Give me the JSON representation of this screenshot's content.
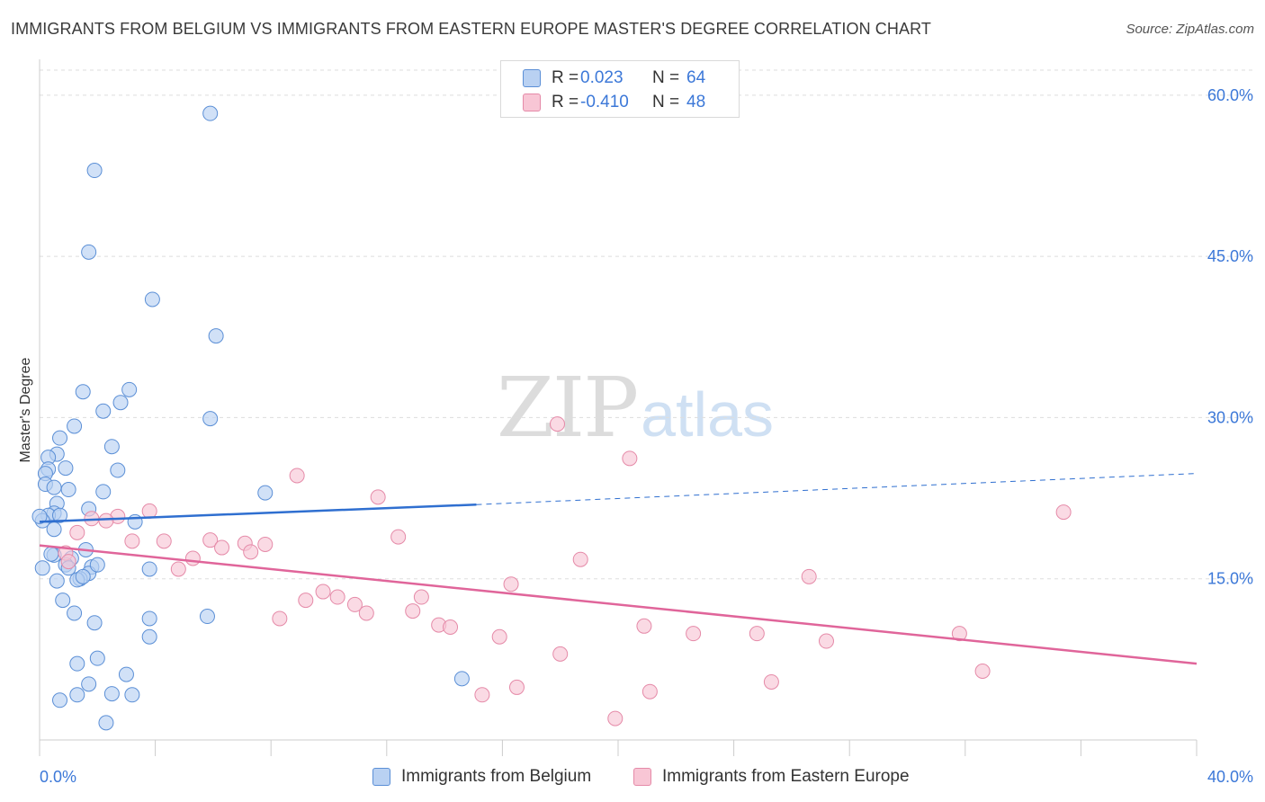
{
  "title": "IMMIGRANTS FROM BELGIUM VS IMMIGRANTS FROM EASTERN EUROPE MASTER'S DEGREE CORRELATION CHART",
  "source": "Source: ZipAtlas.com",
  "watermark": {
    "zip": "ZIP",
    "atlas": "atlas"
  },
  "colors": {
    "belgium_fill": "#b9d1f2",
    "belgium_stroke": "#5b8fd6",
    "belgium_line": "#2f6fd0",
    "eastern_fill": "#f8c6d5",
    "eastern_stroke": "#e58aa8",
    "eastern_line": "#e0659a",
    "accent_text": "#3c78d8",
    "grid": "#dddddd"
  },
  "legend": {
    "rows": [
      {
        "r_label": "R =",
        "r_value": " 0.023",
        "n_label": "N =",
        "n_value": "64"
      },
      {
        "r_label": "R =",
        "r_value": "-0.410",
        "n_label": "N =",
        "n_value": "48"
      }
    ]
  },
  "chart_data": {
    "type": "scatter",
    "title": "IMMIGRANTS FROM BELGIUM VS IMMIGRANTS FROM EASTERN EUROPE MASTER'S DEGREE CORRELATION CHART",
    "xlabel": "",
    "ylabel": "Master's Degree",
    "xlim": [
      0,
      40
    ],
    "ylim": [
      0,
      63
    ],
    "x_tick_labels": [
      "0.0%",
      "40.0%"
    ],
    "y_ticks": [
      15,
      30,
      45,
      60
    ],
    "y_tick_labels": [
      "15.0%",
      "30.0%",
      "45.0%",
      "60.0%"
    ],
    "grid": true,
    "series": [
      {
        "name": "Immigrants from Belgium",
        "points": [
          [
            5.9,
            58.3
          ],
          [
            1.9,
            53.0
          ],
          [
            1.7,
            45.4
          ],
          [
            3.9,
            41.0
          ],
          [
            6.1,
            37.6
          ],
          [
            1.5,
            32.4
          ],
          [
            3.1,
            32.6
          ],
          [
            2.8,
            31.4
          ],
          [
            2.2,
            30.6
          ],
          [
            5.9,
            29.9
          ],
          [
            1.2,
            29.2
          ],
          [
            0.7,
            28.1
          ],
          [
            2.5,
            27.3
          ],
          [
            0.6,
            26.6
          ],
          [
            0.3,
            26.3
          ],
          [
            0.3,
            25.2
          ],
          [
            0.9,
            25.3
          ],
          [
            2.7,
            25.1
          ],
          [
            0.2,
            24.8
          ],
          [
            0.2,
            23.8
          ],
          [
            0.5,
            23.5
          ],
          [
            1.0,
            23.3
          ],
          [
            2.2,
            23.1
          ],
          [
            7.8,
            23.0
          ],
          [
            0.6,
            22.0
          ],
          [
            1.7,
            21.5
          ],
          [
            0.5,
            21.1
          ],
          [
            0.3,
            20.9
          ],
          [
            0.7,
            20.9
          ],
          [
            0.1,
            20.4
          ],
          [
            3.3,
            20.3
          ],
          [
            0.5,
            19.6
          ],
          [
            1.6,
            17.7
          ],
          [
            0.5,
            17.2
          ],
          [
            1.1,
            16.9
          ],
          [
            0.9,
            16.3
          ],
          [
            1.8,
            16.1
          ],
          [
            1.0,
            16.0
          ],
          [
            3.8,
            15.9
          ],
          [
            1.7,
            15.5
          ],
          [
            1.4,
            15.0
          ],
          [
            1.3,
            14.9
          ],
          [
            0.6,
            14.8
          ],
          [
            0.8,
            13.0
          ],
          [
            1.2,
            11.8
          ],
          [
            3.8,
            11.3
          ],
          [
            5.8,
            11.5
          ],
          [
            1.9,
            10.9
          ],
          [
            3.8,
            9.6
          ],
          [
            2.0,
            7.6
          ],
          [
            1.3,
            7.1
          ],
          [
            3.0,
            6.1
          ],
          [
            14.6,
            5.7
          ],
          [
            1.7,
            5.2
          ],
          [
            2.5,
            4.3
          ],
          [
            3.2,
            4.2
          ],
          [
            1.3,
            4.2
          ],
          [
            0.7,
            3.7
          ],
          [
            2.3,
            1.6
          ],
          [
            0.1,
            16.0
          ],
          [
            0.0,
            20.8
          ],
          [
            0.4,
            17.3
          ],
          [
            2.0,
            16.3
          ],
          [
            1.5,
            15.2
          ]
        ]
      },
      {
        "name": "Immigrants from Eastern Europe",
        "points": [
          [
            17.9,
            29.4
          ],
          [
            20.4,
            26.2
          ],
          [
            8.9,
            24.6
          ],
          [
            11.7,
            22.6
          ],
          [
            3.8,
            21.3
          ],
          [
            35.4,
            21.2
          ],
          [
            2.7,
            20.8
          ],
          [
            1.8,
            20.6
          ],
          [
            2.3,
            20.4
          ],
          [
            1.3,
            19.3
          ],
          [
            12.4,
            18.9
          ],
          [
            5.9,
            18.6
          ],
          [
            4.3,
            18.5
          ],
          [
            3.2,
            18.5
          ],
          [
            7.1,
            18.3
          ],
          [
            7.8,
            18.2
          ],
          [
            6.3,
            17.9
          ],
          [
            7.3,
            17.5
          ],
          [
            0.9,
            17.4
          ],
          [
            5.3,
            16.9
          ],
          [
            18.7,
            16.8
          ],
          [
            1.0,
            16.6
          ],
          [
            4.8,
            15.9
          ],
          [
            26.6,
            15.2
          ],
          [
            16.3,
            14.5
          ],
          [
            9.8,
            13.8
          ],
          [
            10.3,
            13.3
          ],
          [
            13.2,
            13.3
          ],
          [
            9.2,
            13.0
          ],
          [
            10.9,
            12.6
          ],
          [
            12.9,
            12.0
          ],
          [
            11.3,
            11.8
          ],
          [
            8.3,
            11.3
          ],
          [
            13.8,
            10.7
          ],
          [
            14.2,
            10.5
          ],
          [
            20.9,
            10.6
          ],
          [
            22.6,
            9.9
          ],
          [
            24.8,
            9.9
          ],
          [
            31.8,
            9.9
          ],
          [
            15.9,
            9.6
          ],
          [
            27.2,
            9.2
          ],
          [
            18.0,
            8.0
          ],
          [
            32.6,
            6.4
          ],
          [
            25.3,
            5.4
          ],
          [
            16.5,
            4.9
          ],
          [
            21.1,
            4.5
          ],
          [
            15.3,
            4.2
          ],
          [
            19.9,
            2.0
          ]
        ]
      }
    ],
    "trend_lines": [
      {
        "name": "Immigrants from Belgium",
        "solid": [
          [
            0,
            20.3
          ],
          [
            15.1,
            21.9
          ]
        ],
        "dashed": [
          [
            15.1,
            21.9
          ],
          [
            40,
            24.8
          ]
        ]
      },
      {
        "name": "Immigrants from Eastern Europe",
        "solid": [
          [
            0,
            18.1
          ],
          [
            40,
            7.1
          ]
        ]
      }
    ],
    "legend_position": "top-center"
  },
  "bottom_legend": [
    "Immigrants from Belgium",
    "Immigrants from Eastern Europe"
  ]
}
